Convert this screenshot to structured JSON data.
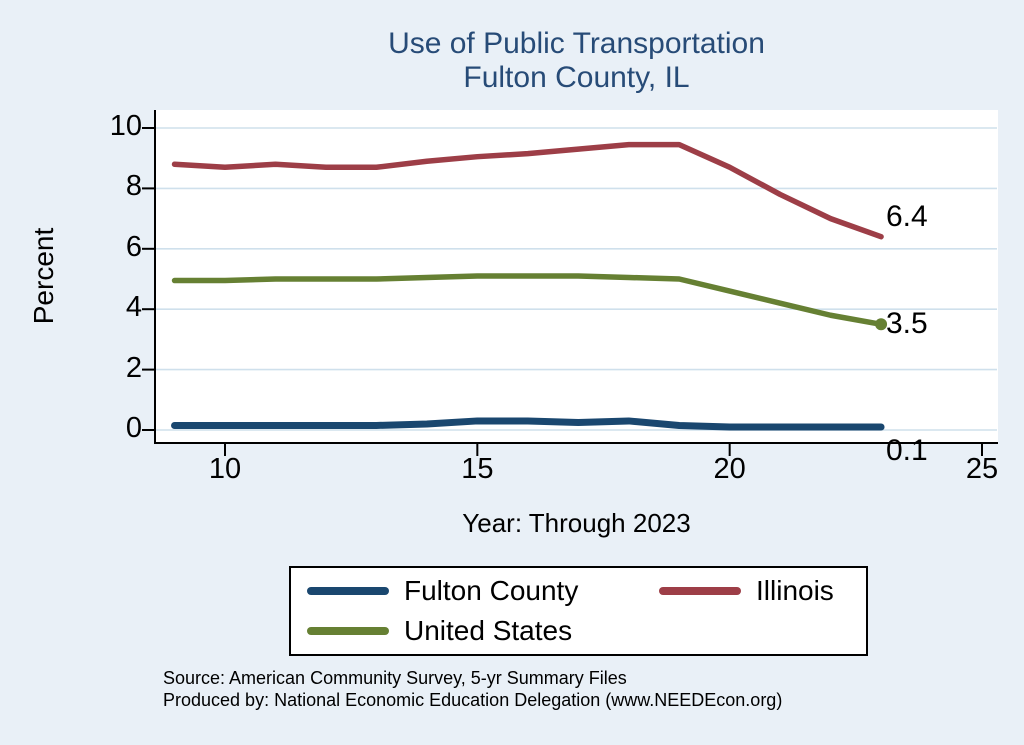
{
  "chart": {
    "title_line1": "Use of Public Transportation",
    "title_line2": "Fulton County, IL",
    "ylabel": "Percent",
    "xlabel": "Year: Through 2023",
    "source_line1": "Source: American Community Survey, 5-yr Summary Files",
    "source_line2": "Produced by: National Economic Education Delegation (www.NEEDEcon.org)",
    "colors": {
      "background": "#e9f0f7",
      "plot_background": "#ffffff",
      "grid": "#cfe0ec",
      "axis": "#000000",
      "title": "#274b77"
    }
  },
  "chart_data": {
    "type": "line",
    "title": "Use of Public Transportation — Fulton County, IL",
    "xlabel": "Year: Through 2023",
    "ylabel": "Percent",
    "x": [
      9,
      10,
      11,
      12,
      13,
      14,
      15,
      16,
      17,
      18,
      19,
      20,
      21,
      22,
      23
    ],
    "xlim": [
      8.5,
      25.5
    ],
    "ylim": [
      0,
      10
    ],
    "x_ticks": [
      10,
      15,
      20,
      25
    ],
    "y_ticks": [
      0,
      2,
      4,
      6,
      8,
      10
    ],
    "grid": "horizontal",
    "legend_position": "bottom",
    "series": [
      {
        "name": "Fulton County",
        "color": "#1a476f",
        "end_label": "0.1",
        "end_dot": false,
        "values": [
          0.15,
          0.15,
          0.15,
          0.15,
          0.15,
          0.2,
          0.3,
          0.3,
          0.25,
          0.3,
          0.15,
          0.1,
          0.1,
          0.1,
          0.1
        ]
      },
      {
        "name": "Illinois",
        "color": "#9d3e47",
        "end_label": "6.4",
        "end_dot": false,
        "values": [
          8.8,
          8.7,
          8.8,
          8.7,
          8.7,
          8.9,
          9.05,
          9.15,
          9.3,
          9.45,
          9.45,
          8.7,
          7.8,
          7.0,
          6.4
        ]
      },
      {
        "name": "United States",
        "color": "#668033",
        "end_label": "3.5",
        "end_dot": true,
        "values": [
          4.95,
          4.95,
          5.0,
          5.0,
          5.0,
          5.05,
          5.1,
          5.1,
          5.1,
          5.05,
          5.0,
          4.6,
          4.2,
          3.8,
          3.5
        ]
      }
    ]
  }
}
